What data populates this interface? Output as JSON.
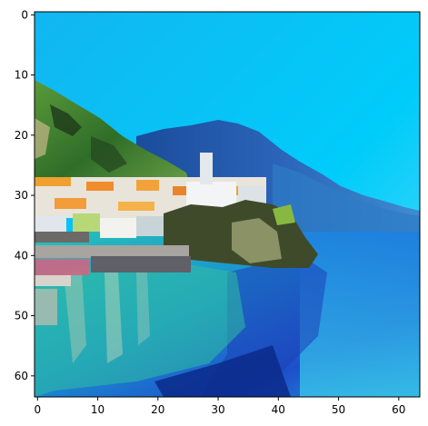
{
  "image": {
    "grid_width": 64,
    "grid_height": 64,
    "scene": "Coastal village on a steep green hillside with white and orange buildings, blue mountains in the background and turquoise sea water",
    "palette": {
      "sky_top": "#00C8F8",
      "sky_bottom": "#60D8F8",
      "mountain": "#1F5FAE",
      "mountain_dark": "#133F86",
      "hill_green": "#3E8F2E",
      "hill_dark": "#254F1E",
      "building_white": "#E8EEF2",
      "building_orange": "#F0902C",
      "sea_light": "#1EB9C8",
      "sea_deep": "#1B52C8",
      "sea_navy": "#0B2A8A",
      "reflection": "#7FB8A8"
    }
  },
  "axes": {
    "x_ticks": [
      "0",
      "10",
      "20",
      "30",
      "40",
      "50",
      "60"
    ],
    "y_ticks": [
      "0",
      "10",
      "20",
      "30",
      "40",
      "50",
      "60"
    ],
    "xlim": [
      -0.5,
      63.5
    ],
    "ylim": [
      63.5,
      -0.5
    ]
  }
}
